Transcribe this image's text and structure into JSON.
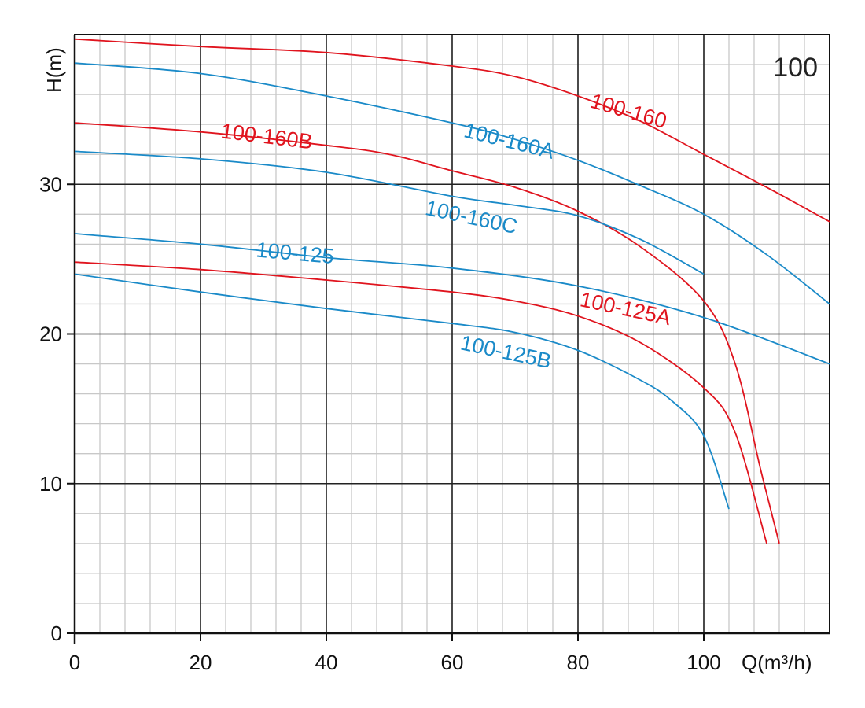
{
  "chart_data": {
    "type": "line",
    "badge": "100",
    "xlabel": "Q(m³/h)",
    "ylabel": "H(m)",
    "xlim": [
      0,
      120
    ],
    "ylim": [
      0,
      40
    ],
    "x_ticks": [
      "0",
      "20",
      "40",
      "60",
      "80",
      "100"
    ],
    "y_ticks": [
      "0",
      "10",
      "20",
      "30"
    ],
    "grid": true,
    "colors": {
      "red": "#e0141e",
      "blue": "#1a8ac8"
    },
    "series": [
      {
        "name": "100-160",
        "color": "red",
        "points": [
          [
            0,
            39.7
          ],
          [
            20,
            39.2
          ],
          [
            40,
            38.8
          ],
          [
            60,
            37.9
          ],
          [
            70,
            37.2
          ],
          [
            80,
            35.9
          ],
          [
            90,
            34.2
          ],
          [
            100,
            32.0
          ],
          [
            110,
            29.8
          ],
          [
            120,
            27.5
          ]
        ]
      },
      {
        "name": "100-160A",
        "color": "blue",
        "points": [
          [
            0,
            38.1
          ],
          [
            20,
            37.4
          ],
          [
            40,
            35.9
          ],
          [
            60,
            34.1
          ],
          [
            70,
            33.0
          ],
          [
            80,
            31.6
          ],
          [
            90,
            29.9
          ],
          [
            100,
            28.0
          ],
          [
            110,
            25.3
          ],
          [
            120,
            22.0
          ]
        ]
      },
      {
        "name": "100-160B",
        "color": "red",
        "points": [
          [
            0,
            34.1
          ],
          [
            20,
            33.5
          ],
          [
            40,
            32.6
          ],
          [
            50,
            32.0
          ],
          [
            60,
            30.9
          ],
          [
            70,
            29.8
          ],
          [
            80,
            28.2
          ],
          [
            90,
            25.8
          ],
          [
            100,
            22.2
          ],
          [
            105,
            18.0
          ],
          [
            109,
            11.0
          ],
          [
            112,
            6.0
          ]
        ]
      },
      {
        "name": "100-160C",
        "color": "blue",
        "points": [
          [
            0,
            32.2
          ],
          [
            20,
            31.7
          ],
          [
            40,
            30.8
          ],
          [
            60,
            29.2
          ],
          [
            70,
            28.6
          ],
          [
            80,
            27.9
          ],
          [
            90,
            26.3
          ],
          [
            100,
            24.0
          ]
        ]
      },
      {
        "name": "100-125",
        "color": "blue",
        "points": [
          [
            0,
            26.7
          ],
          [
            20,
            26.0
          ],
          [
            40,
            25.1
          ],
          [
            60,
            24.4
          ],
          [
            80,
            23.2
          ],
          [
            100,
            21.1
          ],
          [
            120,
            18.0
          ]
        ]
      },
      {
        "name": "100-125A",
        "color": "red",
        "points": [
          [
            0,
            24.8
          ],
          [
            20,
            24.3
          ],
          [
            40,
            23.6
          ],
          [
            60,
            22.8
          ],
          [
            70,
            22.2
          ],
          [
            80,
            21.2
          ],
          [
            90,
            19.4
          ],
          [
            100,
            16.4
          ],
          [
            105,
            13.4
          ],
          [
            110,
            6.0
          ]
        ]
      },
      {
        "name": "100-125B",
        "color": "blue",
        "points": [
          [
            0,
            24.0
          ],
          [
            20,
            22.8
          ],
          [
            40,
            21.7
          ],
          [
            60,
            20.7
          ],
          [
            70,
            20.1
          ],
          [
            80,
            18.9
          ],
          [
            90,
            16.9
          ],
          [
            95,
            15.5
          ],
          [
            100,
            13.2
          ],
          [
            104,
            8.3
          ]
        ]
      }
    ],
    "labels": [
      {
        "text": "100-160",
        "color": "red",
        "x": 88,
        "y": 34.8,
        "angle": 16
      },
      {
        "text": "100-160A",
        "color": "blue",
        "x": 69,
        "y": 32.8,
        "angle": 14
      },
      {
        "text": "100-160B",
        "color": "red",
        "x": 30.5,
        "y": 33.1,
        "angle": 7
      },
      {
        "text": "100-160C",
        "color": "blue",
        "x": 63,
        "y": 27.7,
        "angle": 12
      },
      {
        "text": "100-125",
        "color": "blue",
        "x": 35,
        "y": 25.3,
        "angle": 5
      },
      {
        "text": "100-125A",
        "color": "red",
        "x": 87.5,
        "y": 21.6,
        "angle": 12
      },
      {
        "text": "100-125B",
        "color": "blue",
        "x": 68.5,
        "y": 18.7,
        "angle": 12
      }
    ]
  }
}
